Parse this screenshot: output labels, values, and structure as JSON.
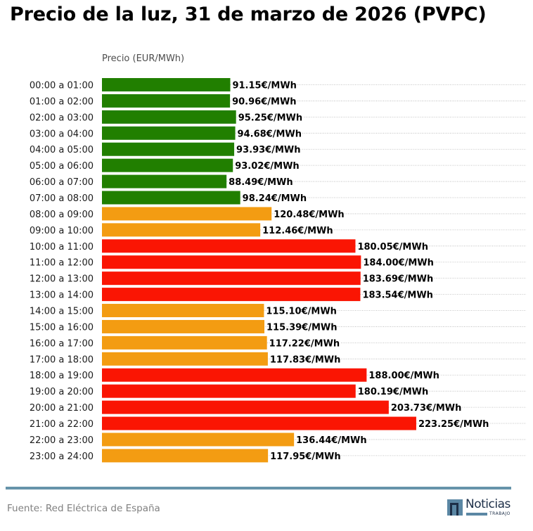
{
  "chart_data": {
    "type": "bar",
    "orientation": "horizontal",
    "title": "Precio de la luz, 31 de marzo de 2026 (PVPC)",
    "xlabel": "Precio (EUR/MWh)",
    "ylabel": "",
    "xlim": [
      0,
      300
    ],
    "grid": "horizontal-dotted",
    "value_suffix": "€/MWh",
    "categories": [
      "00:00 a 01:00",
      "01:00 a 02:00",
      "02:00 a 03:00",
      "03:00 a 04:00",
      "04:00 a 05:00",
      "05:00 a 06:00",
      "06:00 a 07:00",
      "07:00 a 08:00",
      "08:00 a 09:00",
      "09:00 a 10:00",
      "10:00 a 11:00",
      "11:00 a 12:00",
      "12:00 a 13:00",
      "13:00 a 14:00",
      "14:00 a 15:00",
      "15:00 a 16:00",
      "16:00 a 17:00",
      "17:00 a 18:00",
      "18:00 a 19:00",
      "19:00 a 20:00",
      "20:00 a 21:00",
      "21:00 a 22:00",
      "22:00 a 23:00",
      "23:00 a 24:00"
    ],
    "values": [
      91.15,
      90.96,
      95.25,
      94.68,
      93.93,
      93.02,
      88.49,
      98.24,
      120.48,
      112.46,
      180.05,
      184.0,
      183.69,
      183.54,
      115.1,
      115.39,
      117.22,
      117.83,
      188.0,
      180.19,
      203.73,
      223.25,
      136.44,
      117.95
    ],
    "labels": [
      "91.15€/MWh",
      "90.96€/MWh",
      "95.25€/MWh",
      "94.68€/MWh",
      "93.93€/MWh",
      "93.02€/MWh",
      "88.49€/MWh",
      "98.24€/MWh",
      "120.48€/MWh",
      "112.46€/MWh",
      "180.05€/MWh",
      "184.00€/MWh",
      "183.69€/MWh",
      "183.54€/MWh",
      "115.10€/MWh",
      "115.39€/MWh",
      "117.22€/MWh",
      "117.83€/MWh",
      "188.00€/MWh",
      "180.19€/MWh",
      "203.73€/MWh",
      "223.25€/MWh",
      "136.44€/MWh",
      "117.95€/MWh"
    ],
    "levels": [
      "low",
      "low",
      "low",
      "low",
      "low",
      "low",
      "low",
      "low",
      "mid",
      "mid",
      "high",
      "high",
      "high",
      "high",
      "mid",
      "mid",
      "mid",
      "mid",
      "high",
      "high",
      "high",
      "high",
      "mid",
      "mid"
    ],
    "colors": {
      "low": "#217f00",
      "mid": "#f39c12",
      "high": "#fa1503"
    }
  },
  "footer": {
    "source": "Fuente: Red Eléctrica de España",
    "logo_text": "Noticias",
    "logo_subtext": "TRABAJO",
    "rule_color": "#6694aa"
  }
}
